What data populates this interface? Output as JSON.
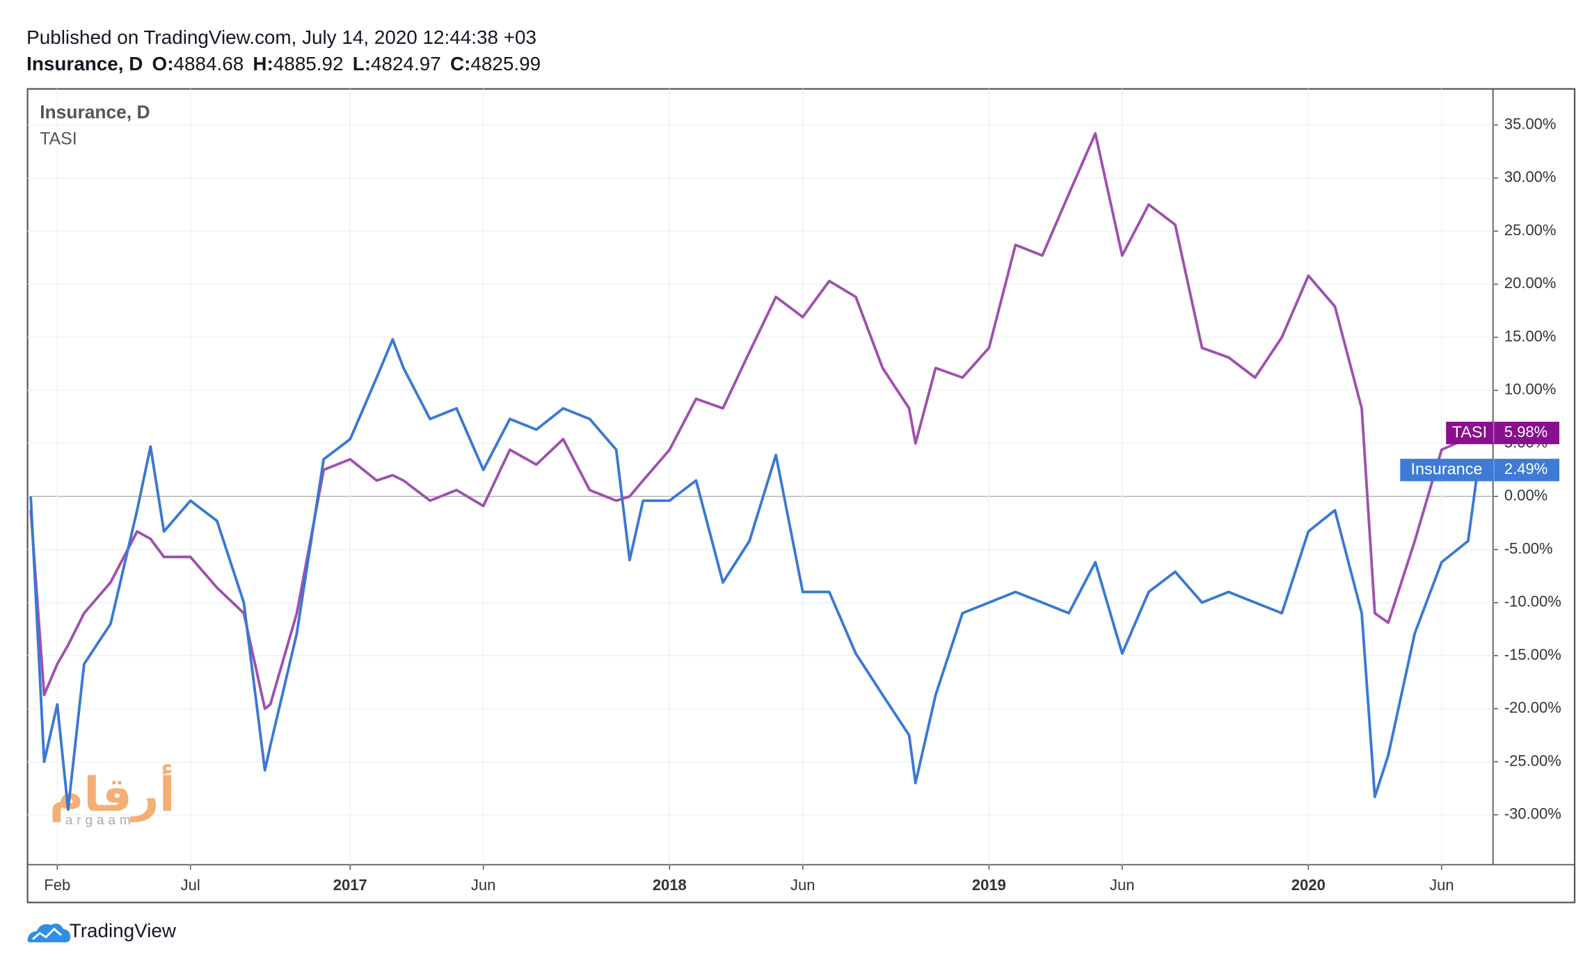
{
  "header": {
    "published": "Published on TradingView.com, July 14, 2020 12:44:38 +03",
    "symbol": "Insurance, D",
    "ohlc": [
      {
        "label": "O:",
        "value": "4884.68"
      },
      {
        "label": "H:",
        "value": "4885.92"
      },
      {
        "label": "L:",
        "value": "4824.97"
      },
      {
        "label": "C:",
        "value": "4825.99"
      }
    ]
  },
  "chart_data": {
    "type": "line",
    "legend": [
      "Insurance, D",
      "TASI"
    ],
    "x": [
      2016.0,
      2016.042,
      2016.083,
      2016.117,
      2016.167,
      2016.25,
      2016.333,
      2016.375,
      2016.417,
      2016.5,
      2016.583,
      2016.667,
      2016.733,
      2016.75,
      2016.833,
      2016.917,
      2017.0,
      2017.083,
      2017.133,
      2017.167,
      2017.25,
      2017.333,
      2017.417,
      2017.5,
      2017.583,
      2017.667,
      2017.75,
      2017.833,
      2017.875,
      2017.917,
      2018.0,
      2018.083,
      2018.167,
      2018.25,
      2018.333,
      2018.417,
      2018.5,
      2018.583,
      2018.667,
      2018.75,
      2018.77,
      2018.833,
      2018.917,
      2019.0,
      2019.083,
      2019.167,
      2019.25,
      2019.333,
      2019.417,
      2019.5,
      2019.583,
      2019.667,
      2019.75,
      2019.833,
      2019.917,
      2020.0,
      2020.083,
      2020.167,
      2020.208,
      2020.25,
      2020.333,
      2020.417,
      2020.5,
      2020.53
    ],
    "series": [
      {
        "name": "TASI",
        "color": "#a04fb0",
        "badge_color": "#8a0f8e",
        "end_label": "5.98%",
        "values": [
          -1.3,
          -18.7,
          -15.8,
          -14,
          -11,
          -8.1,
          -3.3,
          -4,
          -5.7,
          -5.7,
          -8.6,
          -11,
          -20,
          -19.6,
          -11,
          2.5,
          3.5,
          1.5,
          2,
          1.5,
          -0.4,
          0.6,
          -0.9,
          4.4,
          3,
          5.4,
          0.6,
          -0.4,
          0,
          1.5,
          4.4,
          9.2,
          8.3,
          13.6,
          18.8,
          16.9,
          20.3,
          18.8,
          12.1,
          8.3,
          5,
          12.1,
          11.2,
          14,
          23.7,
          22.7,
          28.5,
          34.2,
          22.7,
          27.5,
          25.6,
          14,
          13.1,
          11.2,
          15,
          20.8,
          17.9,
          8.3,
          -11,
          -11.9,
          -4.2,
          4.4,
          5.5,
          5.98
        ]
      },
      {
        "name": "Insurance",
        "color": "#3a78d4",
        "badge_color": "#3d7bd6",
        "end_label": "2.49%",
        "values": [
          0,
          -25,
          -19.6,
          -29.5,
          -15.8,
          -12,
          -1.3,
          4.7,
          -3.3,
          -0.4,
          -2.3,
          -10,
          -25.8,
          -23.5,
          -12.9,
          3.5,
          5.4,
          11.2,
          14.8,
          12.1,
          7.3,
          8.3,
          2.5,
          7.3,
          6.3,
          8.3,
          7.3,
          4.4,
          -6,
          -0.4,
          -0.4,
          1.5,
          -8.1,
          -4.2,
          3.9,
          -9,
          -9,
          -14.8,
          -18.7,
          -22.5,
          -27,
          -18.7,
          -11,
          -10,
          -9,
          -10,
          -11,
          -6.2,
          -14.8,
          -9,
          -7.1,
          -10,
          -9,
          -10,
          -11,
          -3.3,
          -1.3,
          -11,
          -28.3,
          -24.4,
          -12.9,
          -6.2,
          -4.2,
          2.49
        ]
      }
    ],
    "xlim": [
      2015.99,
      2020.578
    ],
    "xticks": [
      {
        "value": 2016.083,
        "label": "Feb"
      },
      {
        "value": 2016.5,
        "label": "Jul"
      },
      2017,
      {
        "value": 2017.417,
        "label": "Jun"
      },
      2018,
      {
        "value": 2018.417,
        "label": "Jun"
      },
      2019,
      {
        "value": 2019.417,
        "label": "Jun"
      },
      2020,
      {
        "value": 2020.417,
        "label": "Jun"
      }
    ],
    "ylim": [
      -34.7,
      38.4
    ],
    "yticks": [
      {
        "value": -30,
        "label": "-30.00%"
      },
      {
        "value": -25,
        "label": "-25.00%"
      },
      {
        "value": -20,
        "label": "-20.00%"
      },
      {
        "value": -15,
        "label": "-15.00%"
      },
      {
        "value": -10,
        "label": "-10.00%"
      },
      {
        "value": -5,
        "label": "-5.00%"
      },
      {
        "value": 0,
        "label": "0.00%"
      },
      {
        "value": 5,
        "label": "5.00%"
      },
      {
        "value": 10,
        "label": "10.00%"
      },
      {
        "value": 15,
        "label": "15.00%"
      },
      {
        "value": 20,
        "label": "20.00%"
      },
      {
        "value": 25,
        "label": "25.00%"
      },
      {
        "value": 30,
        "label": "30.00%"
      },
      {
        "value": 35,
        "label": "35.00%"
      }
    ],
    "grid": true
  },
  "watermark": {
    "arabic": "أرقام",
    "latin": "argaam"
  },
  "footer": {
    "brand": "TradingView"
  }
}
